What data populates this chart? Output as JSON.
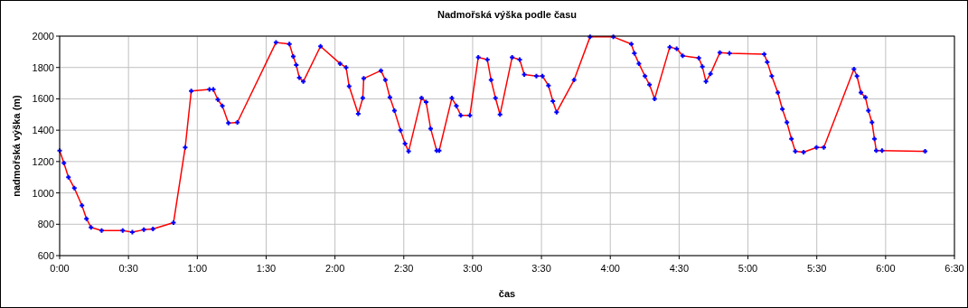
{
  "chart_data": {
    "type": "line",
    "title": "Nadmořská výška podle času",
    "xlabel": "čas",
    "ylabel": "nadmořská výška (m)",
    "xlim": [
      0,
      6.5
    ],
    "ylim": [
      600,
      2000
    ],
    "xticks": [
      {
        "value": 0,
        "label": "0:00"
      },
      {
        "value": 0.5,
        "label": "0:30"
      },
      {
        "value": 1,
        "label": "1:00"
      },
      {
        "value": 1.5,
        "label": "1:30"
      },
      {
        "value": 2,
        "label": "2:00"
      },
      {
        "value": 2.5,
        "label": "2:30"
      },
      {
        "value": 3,
        "label": "3:00"
      },
      {
        "value": 3.5,
        "label": "3:30"
      },
      {
        "value": 4,
        "label": "4:00"
      },
      {
        "value": 4.5,
        "label": "4:30"
      },
      {
        "value": 5,
        "label": "5:00"
      },
      {
        "value": 5.5,
        "label": "5:30"
      },
      {
        "value": 6,
        "label": "6:00"
      },
      {
        "value": 6.5,
        "label": "6:30"
      }
    ],
    "yticks": [
      600,
      800,
      1000,
      1200,
      1400,
      1600,
      1800,
      2000
    ],
    "grid": true,
    "series": [
      {
        "color": "#ff0000",
        "marker": "none",
        "x": [
          0,
          0.031,
          0.064,
          0.107,
          0.162,
          0.195,
          0.228,
          0.305,
          0.458,
          0.528,
          0.612,
          0.678,
          0.827,
          0.912,
          0.956,
          1.088,
          1.116,
          1.149,
          1.182,
          1.226,
          1.291,
          1.572,
          1.669,
          1.697,
          1.719,
          1.741,
          1.77,
          1.895,
          2.037,
          2.081,
          2.103,
          2.169,
          2.202,
          2.209,
          2.334,
          2.366,
          2.399,
          2.432,
          2.476,
          2.509,
          2.535,
          2.629,
          2.662,
          2.695,
          2.739,
          2.757,
          2.849,
          2.882,
          2.914,
          2.98,
          3.041,
          3.107,
          3.134,
          3.166,
          3.199,
          3.287,
          3.342,
          3.375,
          3.463,
          3.507,
          3.551,
          3.583,
          3.61,
          3.737,
          3.853,
          4.022,
          4.153,
          4.175,
          4.208,
          4.252,
          4.285,
          4.322,
          4.432,
          4.482,
          4.526,
          4.643,
          4.669,
          4.695,
          4.728,
          4.796,
          4.866,
          5.118,
          5.14,
          5.173,
          5.217,
          5.25,
          5.283,
          5.316,
          5.344,
          5.404,
          5.498,
          5.551,
          5.77,
          5.792,
          5.821,
          5.853,
          5.875,
          5.901,
          5.919,
          5.932,
          5.974,
          6.287
        ],
        "values": [
          1270,
          1190,
          1100,
          1030,
          920,
          835,
          780,
          760,
          760,
          750,
          765,
          770,
          810,
          1290,
          1650,
          1660,
          1660,
          1595,
          1555,
          1445,
          1450,
          1960,
          1950,
          1870,
          1815,
          1735,
          1710,
          1935,
          1825,
          1800,
          1680,
          1505,
          1605,
          1730,
          1780,
          1720,
          1610,
          1525,
          1400,
          1315,
          1265,
          1605,
          1580,
          1410,
          1270,
          1270,
          1605,
          1555,
          1495,
          1495,
          1865,
          1850,
          1720,
          1605,
          1500,
          1865,
          1850,
          1755,
          1745,
          1745,
          1685,
          1585,
          1515,
          1720,
          1995,
          1995,
          1950,
          1890,
          1825,
          1745,
          1690,
          1600,
          1930,
          1920,
          1875,
          1860,
          1805,
          1710,
          1760,
          1895,
          1890,
          1885,
          1835,
          1745,
          1640,
          1535,
          1450,
          1345,
          1265,
          1260,
          1290,
          1290,
          1790,
          1745,
          1640,
          1610,
          1525,
          1450,
          1345,
          1270,
          1270,
          1265
        ]
      },
      {
        "type": "scatter",
        "color": "#0000ff",
        "marker": "cross",
        "x": [
          0,
          0.031,
          0.064,
          0.107,
          0.162,
          0.195,
          0.228,
          0.305,
          0.458,
          0.528,
          0.612,
          0.678,
          0.827,
          0.912,
          0.956,
          1.088,
          1.116,
          1.149,
          1.182,
          1.226,
          1.291,
          1.572,
          1.669,
          1.697,
          1.719,
          1.741,
          1.77,
          1.895,
          2.037,
          2.081,
          2.103,
          2.169,
          2.202,
          2.209,
          2.334,
          2.366,
          2.399,
          2.432,
          2.476,
          2.509,
          2.535,
          2.629,
          2.662,
          2.695,
          2.739,
          2.757,
          2.849,
          2.882,
          2.914,
          2.98,
          3.041,
          3.107,
          3.134,
          3.166,
          3.199,
          3.287,
          3.342,
          3.375,
          3.463,
          3.507,
          3.551,
          3.583,
          3.61,
          3.737,
          3.853,
          4.022,
          4.153,
          4.175,
          4.208,
          4.252,
          4.285,
          4.322,
          4.432,
          4.482,
          4.526,
          4.643,
          4.669,
          4.695,
          4.728,
          4.796,
          4.866,
          5.118,
          5.14,
          5.173,
          5.217,
          5.25,
          5.283,
          5.316,
          5.344,
          5.404,
          5.498,
          5.551,
          5.77,
          5.792,
          5.821,
          5.853,
          5.875,
          5.901,
          5.919,
          5.932,
          5.974,
          6.287
        ],
        "values": [
          1270,
          1190,
          1100,
          1030,
          920,
          835,
          780,
          760,
          760,
          750,
          765,
          770,
          810,
          1290,
          1650,
          1660,
          1660,
          1595,
          1555,
          1445,
          1450,
          1960,
          1950,
          1870,
          1815,
          1735,
          1710,
          1935,
          1825,
          1800,
          1680,
          1505,
          1605,
          1730,
          1780,
          1720,
          1610,
          1525,
          1400,
          1315,
          1265,
          1605,
          1580,
          1410,
          1270,
          1270,
          1605,
          1555,
          1495,
          1495,
          1865,
          1850,
          1720,
          1605,
          1500,
          1865,
          1850,
          1755,
          1745,
          1745,
          1685,
          1585,
          1515,
          1720,
          1995,
          1995,
          1950,
          1890,
          1825,
          1745,
          1690,
          1600,
          1930,
          1920,
          1875,
          1860,
          1805,
          1710,
          1760,
          1895,
          1890,
          1885,
          1835,
          1745,
          1640,
          1535,
          1450,
          1345,
          1265,
          1260,
          1290,
          1290,
          1790,
          1745,
          1640,
          1610,
          1525,
          1450,
          1345,
          1270,
          1270,
          1265
        ]
      }
    ]
  }
}
